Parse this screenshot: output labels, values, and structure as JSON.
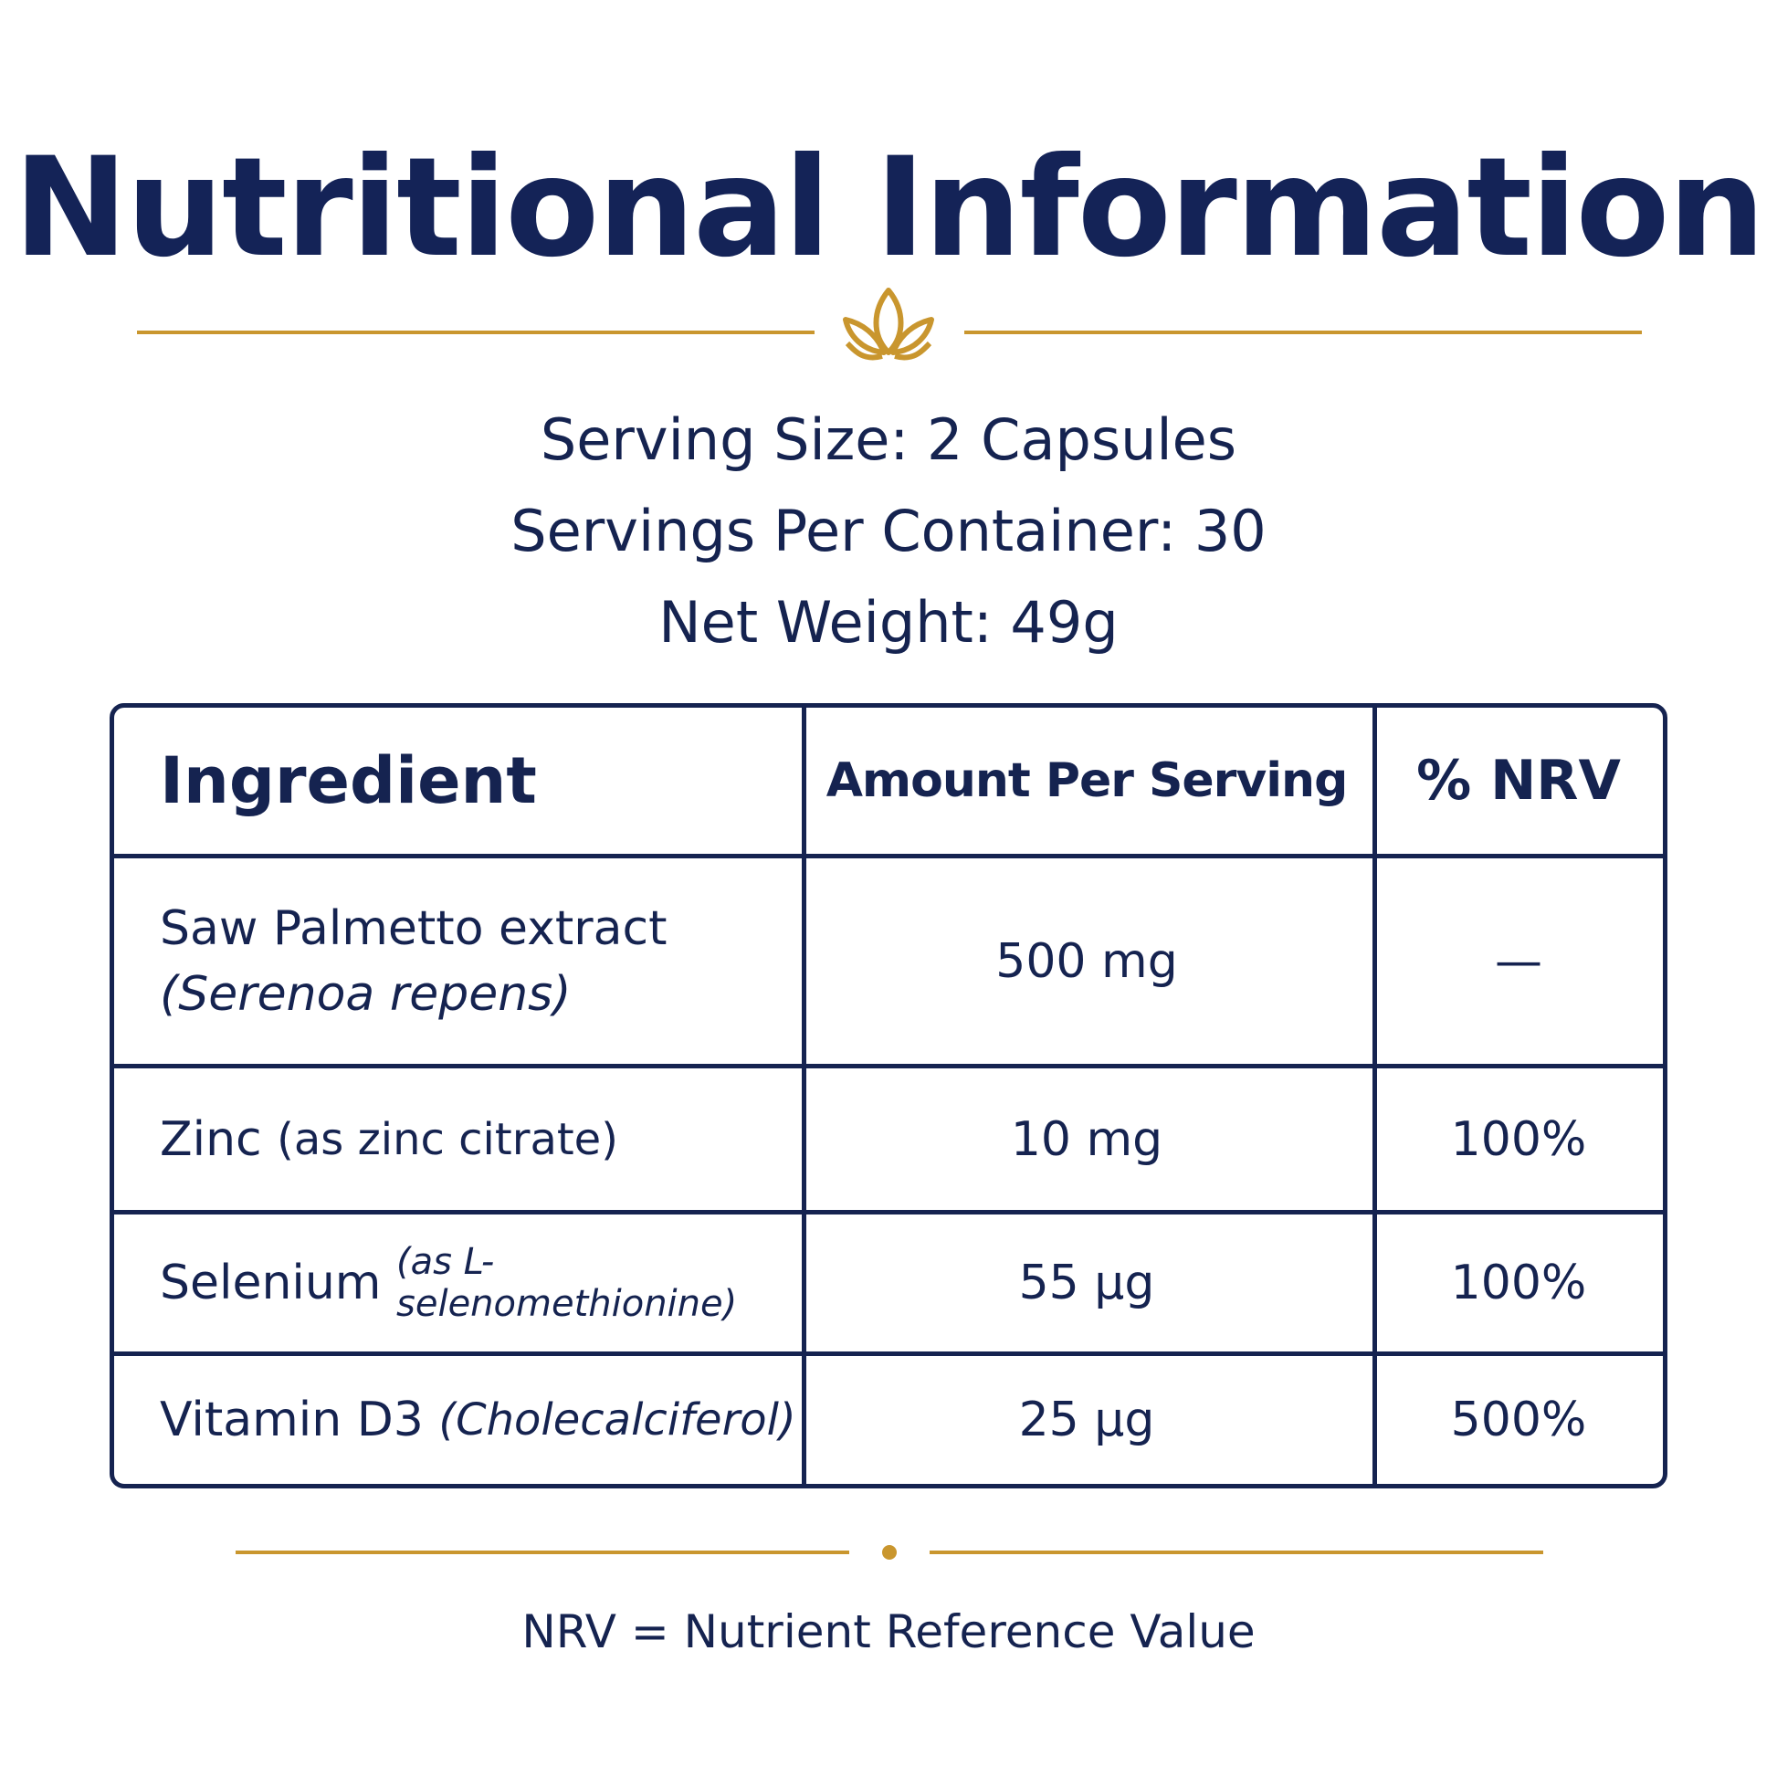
{
  "title": "Nutritional Information",
  "colors": {
    "navy": "#152350",
    "gold": "#C9962E",
    "background": "#FFFFFF"
  },
  "ornament_icon": "lotus-icon",
  "serving_info": {
    "serving_size": "Serving Size: 2 Capsules",
    "servings_per_container": "Servings Per Container: 30",
    "net_weight": "Net Weight: 49g"
  },
  "table": {
    "headers": {
      "ingredient": "Ingredient",
      "amount": "Amount Per Serving",
      "nrv": "% NRV"
    },
    "rows": [
      {
        "ingredient": "Saw Palmetto extract",
        "detail": "(Serenoa repens)",
        "amount": "500 mg",
        "nrv": "—"
      },
      {
        "ingredient": "Zinc",
        "detail": "(as zinc citrate)",
        "amount": "10 mg",
        "nrv": "100%"
      },
      {
        "ingredient": "Selenium",
        "detail": "(as L-selenomethionine)",
        "amount": "55 µg",
        "nrv": "100%"
      },
      {
        "ingredient": "Vitamin D3",
        "detail": "(Cholecalciferol)",
        "amount": "25 µg",
        "nrv": "500%"
      }
    ]
  },
  "footnote": "NRV = Nutrient Reference Value"
}
